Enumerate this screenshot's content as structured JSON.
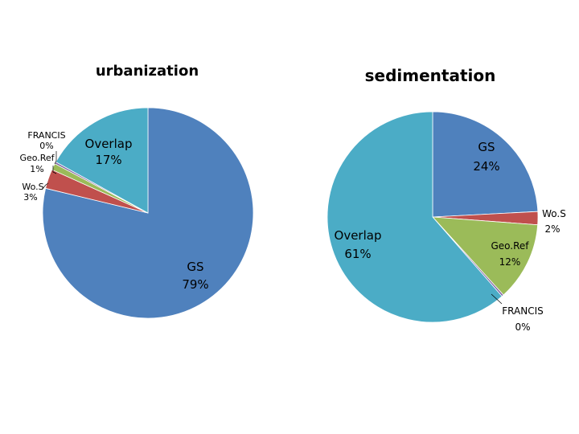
{
  "chart_data": [
    {
      "type": "pie",
      "title": "urbanization",
      "slices": [
        {
          "name": "GS",
          "value": 79,
          "label": "GS",
          "pct": "79%",
          "color": "#4f81bd"
        },
        {
          "name": "Wo.S",
          "value": 3,
          "label": "Wo.S",
          "pct": "3%",
          "color": "#c0504d"
        },
        {
          "name": "Geo.Ref",
          "value": 1,
          "label": "Geo.Ref",
          "pct": "1%",
          "color": "#9bbb59"
        },
        {
          "name": "FRANCIS",
          "value": 0.3,
          "label": "FRANCIS",
          "pct": "0%",
          "color": "#8064a2"
        },
        {
          "name": "Overlap",
          "value": 17,
          "label": "Overlap",
          "pct": "17%",
          "color": "#4bacc6"
        }
      ]
    },
    {
      "type": "pie",
      "title": "sedimentation",
      "slices": [
        {
          "name": "GS",
          "value": 24,
          "label": "GS",
          "pct": "24%",
          "color": "#4f81bd"
        },
        {
          "name": "Wo.S",
          "value": 2,
          "label": "Wo.S",
          "pct": "2%",
          "color": "#c0504d"
        },
        {
          "name": "Geo.Ref",
          "value": 12,
          "label": "Geo.Ref",
          "pct": "12%",
          "color": "#9bbb59"
        },
        {
          "name": "FRANCIS",
          "value": 0.3,
          "label": "FRANCIS",
          "pct": "0%",
          "color": "#8064a2"
        },
        {
          "name": "Overlap",
          "value": 61,
          "label": "Overlap",
          "pct": "61%",
          "color": "#4bacc6"
        }
      ]
    }
  ]
}
